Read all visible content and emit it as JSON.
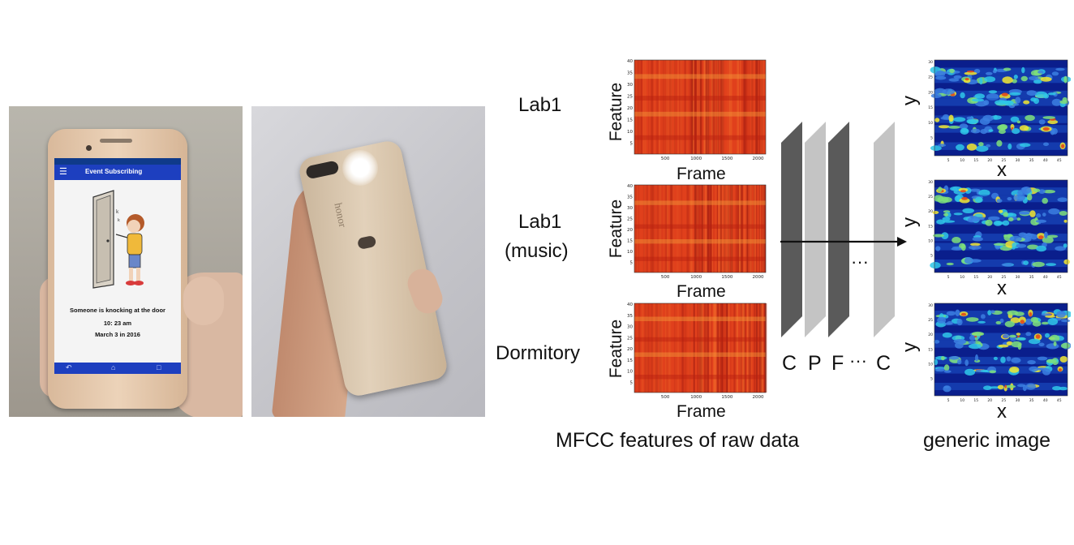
{
  "phone_screen": {
    "app_title": "Event Subscribing",
    "message": "Someone is knocking at the door",
    "time": "10: 23 am",
    "date": "March 3 in 2016"
  },
  "phone_back": {
    "brand": "honor"
  },
  "mfcc": {
    "caption": "MFCC features of raw data",
    "rows": [
      {
        "label": "Lab1",
        "label_line2": ""
      },
      {
        "label": "Lab1",
        "label_line2": "(music)"
      },
      {
        "label": "Dormitory",
        "label_line2": ""
      }
    ],
    "y_axis_label": "Feature",
    "x_axis_label": "Frame",
    "y_ticks": [
      "40",
      "35",
      "30",
      "25",
      "20",
      "15",
      "10",
      "5"
    ],
    "x_ticks": [
      "500",
      "1000",
      "1500",
      "2000"
    ]
  },
  "cnn": {
    "layer_labels": [
      "C",
      "P",
      "F",
      "···",
      "C"
    ],
    "ellipsis": "···"
  },
  "generic": {
    "caption": "generic image",
    "x_axis_label": "x",
    "y_axis_label": "y",
    "y_ticks": [
      "30",
      "25",
      "20",
      "15",
      "10",
      "5"
    ],
    "x_ticks": [
      "5",
      "10",
      "15",
      "20",
      "25",
      "30",
      "35",
      "40",
      "45"
    ]
  },
  "colors": {
    "heatmap_base": "#e0401c",
    "generic_base": "#0a1e8c",
    "layer_dark": "#5a5a5a",
    "layer_light": "#c4c4c4"
  }
}
